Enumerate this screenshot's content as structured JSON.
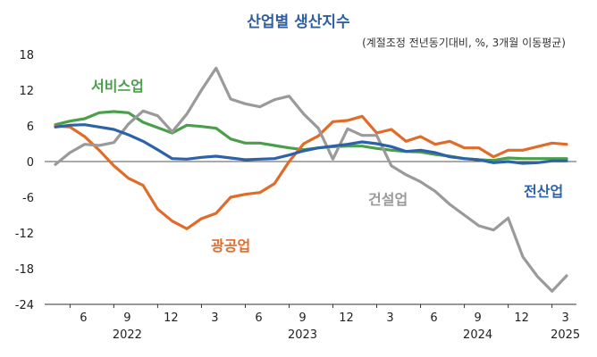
{
  "chart_data": {
    "type": "line",
    "title": "산업별 생산지수",
    "subtitle": "(계절조정 전년동기대비, %, 3개월 이동평균)",
    "ylim": [
      -24,
      18
    ],
    "yticks": [
      18,
      12,
      6,
      0,
      -6,
      -12,
      -18,
      -24
    ],
    "x_ticks": [
      {
        "label": "6",
        "index": 1
      },
      {
        "label": "9",
        "index": 4
      },
      {
        "label": "12",
        "index": 7
      },
      {
        "label": "3",
        "index": 10
      },
      {
        "label": "6",
        "index": 13
      },
      {
        "label": "9",
        "index": 16
      },
      {
        "label": "12",
        "index": 19
      },
      {
        "label": "3",
        "index": 22
      },
      {
        "label": "6",
        "index": 25
      },
      {
        "label": "9",
        "index": 28
      },
      {
        "label": "12",
        "index": 31
      },
      {
        "label": "3",
        "index": 34
      }
    ],
    "years": [
      {
        "label": "2022",
        "index": 4
      },
      {
        "label": "2023",
        "index": 16
      },
      {
        "label": "2024",
        "index": 28
      },
      {
        "label": "2025",
        "index": 34
      }
    ],
    "x_count": 36,
    "series": [
      {
        "name": "서비스업",
        "color": "#4aa04a",
        "values": [
          6.2,
          6.8,
          7.2,
          8.2,
          8.4,
          8.2,
          6.6,
          5.7,
          4.8,
          6.1,
          5.9,
          5.6,
          3.8,
          3.1,
          3.1,
          2.7,
          2.3,
          2.0,
          2.3,
          2.5,
          2.6,
          2.6,
          2.2,
          1.9,
          1.7,
          1.6,
          1.2,
          0.9,
          0.5,
          0.3,
          0.2,
          0.6,
          0.5,
          0.5,
          0.5,
          0.5
        ]
      },
      {
        "name": "광공업",
        "color": "#e06c2a",
        "values": [
          6.0,
          5.8,
          4.2,
          1.9,
          -0.7,
          -2.8,
          -4.0,
          -8.0,
          -10.0,
          -11.3,
          -9.6,
          -8.7,
          -6.0,
          -5.5,
          -5.2,
          -3.7,
          0.0,
          3.0,
          4.3,
          6.7,
          6.9,
          7.6,
          4.8,
          5.4,
          3.4,
          4.2,
          2.9,
          3.4,
          2.3,
          2.3,
          0.8,
          1.9,
          1.9,
          2.5,
          3.1,
          2.9
        ]
      },
      {
        "name": "건설업",
        "color": "#9a9a9a",
        "values": [
          -0.5,
          1.5,
          2.9,
          2.7,
          3.2,
          6.3,
          8.5,
          7.7,
          5.0,
          8.0,
          12.0,
          15.7,
          10.5,
          9.7,
          9.2,
          10.4,
          11.0,
          8.0,
          5.6,
          0.4,
          5.5,
          4.4,
          4.4,
          -0.7,
          -2.2,
          -3.4,
          -5.0,
          -7.2,
          -9.0,
          -10.8,
          -11.5,
          -9.5,
          -16.0,
          -19.3,
          -21.8,
          -19.2
        ]
      },
      {
        "name": "전산업",
        "color": "#2e62a8",
        "values": [
          5.8,
          6.1,
          6.2,
          5.8,
          5.4,
          4.5,
          3.4,
          2.0,
          0.5,
          0.4,
          0.7,
          0.9,
          0.6,
          0.3,
          0.4,
          0.5,
          1.1,
          1.8,
          2.3,
          2.6,
          2.9,
          3.3,
          3.0,
          2.5,
          1.7,
          1.9,
          1.5,
          0.8,
          0.5,
          0.3,
          -0.2,
          0.0,
          -0.3,
          -0.2,
          0.1,
          0.1
        ]
      }
    ]
  }
}
